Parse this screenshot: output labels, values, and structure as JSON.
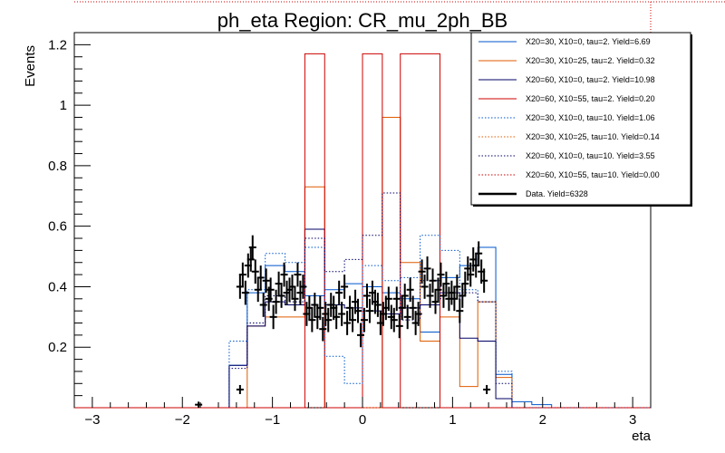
{
  "chart_data": {
    "type": "histogram",
    "title": "ph_eta Region: CR_mu_2ph_BB",
    "xlabel": "eta",
    "ylabel": "Events",
    "xlim": [
      -3.2,
      3.2
    ],
    "ylim": [
      0,
      1.24
    ],
    "x_ticks": [
      -3,
      -2,
      -1,
      0,
      1,
      2,
      3
    ],
    "y_ticks": [
      0.2,
      0.4,
      0.6,
      0.8,
      1,
      1.2
    ],
    "legend_position": "top-right",
    "grid": false,
    "bin_edges": [
      -3.2,
      -2.98,
      -2.76,
      -2.54,
      -2.32,
      -2.1,
      -1.88,
      -1.66,
      -1.48,
      -1.28,
      -1.08,
      -0.86,
      -0.64,
      -0.42,
      -0.2,
      0.0,
      0.22,
      0.42,
      0.64,
      0.86,
      1.08,
      1.28,
      1.48,
      1.66,
      1.88,
      2.1,
      2.32,
      2.54,
      2.76,
      2.98,
      3.2
    ],
    "series": [
      {
        "name": "X20=30, X10=0, tau=2. Yield=6.69",
        "color": "#0055cc",
        "style": "solid",
        "values": [
          0,
          0,
          0,
          0,
          0,
          0,
          0,
          0,
          0.14,
          0.38,
          0.47,
          0.45,
          0.37,
          0.39,
          0.41,
          0.4,
          0.38,
          0.36,
          0.25,
          0.43,
          0.47,
          0.53,
          0.11,
          0.02,
          0.01,
          0,
          0,
          0,
          0,
          0
        ]
      },
      {
        "name": "X20=30, X10=25, tau=2. Yield=0.32",
        "color": "#e05a00",
        "style": "solid",
        "values": [
          0,
          0,
          0,
          0,
          0,
          0,
          0,
          0,
          0,
          0.27,
          0.3,
          0.3,
          0.73,
          0,
          0,
          0,
          0.96,
          0.48,
          0.22,
          0.3,
          0.07,
          0.35,
          0.1,
          0,
          0,
          0,
          0,
          0,
          0,
          0
        ]
      },
      {
        "name": "X20=60, X10=0, tau=2. Yield=10.98",
        "color": "#000066",
        "style": "solid",
        "values": [
          0,
          0,
          0,
          0,
          0,
          0,
          0,
          0,
          0.14,
          0.27,
          0.35,
          0.34,
          0.59,
          0.34,
          0.33,
          0.32,
          0.31,
          0.33,
          0.34,
          0.38,
          0.23,
          0.22,
          0.03,
          0,
          0,
          0,
          0,
          0,
          0,
          0
        ]
      },
      {
        "name": "X20=60, X10=55, tau=2. Yield=0.20",
        "color": "#cc0000",
        "style": "solid",
        "values": [
          0,
          0,
          0,
          0,
          0,
          0,
          0,
          0,
          0,
          0,
          0,
          0,
          1.17,
          0,
          0,
          1.17,
          0,
          1.17,
          1.17,
          0,
          0,
          0,
          0,
          0,
          0,
          0,
          0,
          0,
          0,
          0
        ]
      },
      {
        "name": "X20=30, X10=0, tau=10. Yield=1.06",
        "color": "#0055cc",
        "style": "dotted",
        "values": [
          0,
          0,
          0,
          0,
          0,
          0,
          0,
          0,
          0.22,
          0.39,
          0.51,
          0.48,
          0.53,
          0.17,
          0.08,
          0.47,
          0.42,
          0.43,
          0.57,
          0.52,
          0.39,
          0.35,
          0.12,
          0,
          0,
          0,
          0,
          0,
          0,
          0
        ]
      },
      {
        "name": "X20=30, X10=25, tau=10. Yield=0.14",
        "color": "#e05a00",
        "style": "dotted",
        "values": [
          0,
          0,
          0,
          0,
          0,
          0,
          0,
          0,
          0,
          0,
          0,
          0,
          0,
          0,
          0,
          0,
          0,
          0,
          0,
          0,
          0,
          0,
          0,
          0,
          0,
          0,
          0,
          0,
          0,
          0
        ]
      },
      {
        "name": "X20=60, X10=0, tau=10. Yield=3.55",
        "color": "#000066",
        "style": "dotted",
        "values": [
          0,
          0,
          0,
          0,
          0,
          0,
          0,
          0,
          0.13,
          0.28,
          0.37,
          0.35,
          0.56,
          0.45,
          0.49,
          0.57,
          0.71,
          0.29,
          0.42,
          0.36,
          0.38,
          0.35,
          0.08,
          0,
          0,
          0,
          0,
          0,
          0,
          0
        ]
      },
      {
        "name": "X20=60, X10=55, tau=10. Yield=0.00",
        "color": "#cc0000",
        "style": "dotted",
        "values": [
          0,
          0,
          0,
          0,
          0,
          0,
          0,
          0,
          0,
          0,
          0,
          0,
          0,
          0,
          0,
          0,
          0,
          0,
          0,
          0,
          0,
          0,
          0,
          0,
          0,
          0,
          0,
          0,
          0,
          0
        ]
      },
      {
        "name": "Data. Yield=6328",
        "color": "#000000",
        "style": "markers",
        "points": [
          [
            -1.82,
            0.01,
            0.01
          ],
          [
            -1.36,
            0.06,
            0.015
          ],
          [
            -1.36,
            0.4,
            0.04
          ],
          [
            -1.33,
            0.44,
            0.04
          ],
          [
            -1.3,
            0.38,
            0.04
          ],
          [
            -1.27,
            0.47,
            0.04
          ],
          [
            -1.24,
            0.49,
            0.04
          ],
          [
            -1.22,
            0.53,
            0.04
          ],
          [
            -1.19,
            0.45,
            0.04
          ],
          [
            -1.16,
            0.39,
            0.04
          ],
          [
            -1.13,
            0.43,
            0.04
          ],
          [
            -1.1,
            0.34,
            0.04
          ],
          [
            -1.07,
            0.42,
            0.04
          ],
          [
            -1.04,
            0.36,
            0.04
          ],
          [
            -1.02,
            0.39,
            0.04
          ],
          [
            -0.99,
            0.3,
            0.04
          ],
          [
            -0.96,
            0.35,
            0.04
          ],
          [
            -0.93,
            0.41,
            0.04
          ],
          [
            -0.9,
            0.37,
            0.04
          ],
          [
            -0.87,
            0.44,
            0.04
          ],
          [
            -0.84,
            0.38,
            0.04
          ],
          [
            -0.81,
            0.39,
            0.04
          ],
          [
            -0.78,
            0.4,
            0.04
          ],
          [
            -0.75,
            0.36,
            0.04
          ],
          [
            -0.72,
            0.44,
            0.04
          ],
          [
            -0.69,
            0.38,
            0.04
          ],
          [
            -0.66,
            0.4,
            0.04
          ],
          [
            -0.62,
            0.31,
            0.04
          ],
          [
            -0.59,
            0.33,
            0.04
          ],
          [
            -0.56,
            0.29,
            0.04
          ],
          [
            -0.53,
            0.34,
            0.04
          ],
          [
            -0.5,
            0.3,
            0.04
          ],
          [
            -0.47,
            0.33,
            0.04
          ],
          [
            -0.44,
            0.26,
            0.04
          ],
          [
            -0.41,
            0.31,
            0.04
          ],
          [
            -0.38,
            0.29,
            0.04
          ],
          [
            -0.35,
            0.34,
            0.04
          ],
          [
            -0.32,
            0.33,
            0.04
          ],
          [
            -0.29,
            0.3,
            0.04
          ],
          [
            -0.26,
            0.38,
            0.04
          ],
          [
            -0.23,
            0.31,
            0.04
          ],
          [
            -0.2,
            0.4,
            0.04
          ],
          [
            -0.17,
            0.28,
            0.04
          ],
          [
            -0.14,
            0.33,
            0.04
          ],
          [
            -0.11,
            0.29,
            0.04
          ],
          [
            -0.08,
            0.35,
            0.04
          ],
          [
            -0.05,
            0.32,
            0.04
          ],
          [
            -0.02,
            0.24,
            0.04
          ],
          [
            0.02,
            0.29,
            0.04
          ],
          [
            0.05,
            0.37,
            0.04
          ],
          [
            0.08,
            0.32,
            0.04
          ],
          [
            0.11,
            0.38,
            0.04
          ],
          [
            0.14,
            0.35,
            0.04
          ],
          [
            0.17,
            0.34,
            0.04
          ],
          [
            0.2,
            0.28,
            0.04
          ],
          [
            0.23,
            0.31,
            0.04
          ],
          [
            0.26,
            0.33,
            0.04
          ],
          [
            0.29,
            0.36,
            0.04
          ],
          [
            0.32,
            0.3,
            0.04
          ],
          [
            0.35,
            0.29,
            0.04
          ],
          [
            0.38,
            0.36,
            0.04
          ],
          [
            0.41,
            0.27,
            0.04
          ],
          [
            0.44,
            0.33,
            0.04
          ],
          [
            0.47,
            0.37,
            0.04
          ],
          [
            0.5,
            0.3,
            0.04
          ],
          [
            0.53,
            0.39,
            0.04
          ],
          [
            0.56,
            0.33,
            0.04
          ],
          [
            0.59,
            0.28,
            0.04
          ],
          [
            0.62,
            0.31,
            0.04
          ],
          [
            0.66,
            0.45,
            0.04
          ],
          [
            0.69,
            0.4,
            0.04
          ],
          [
            0.72,
            0.46,
            0.04
          ],
          [
            0.75,
            0.37,
            0.04
          ],
          [
            0.78,
            0.42,
            0.04
          ],
          [
            0.81,
            0.35,
            0.04
          ],
          [
            0.84,
            0.39,
            0.04
          ],
          [
            0.87,
            0.44,
            0.04
          ],
          [
            0.9,
            0.37,
            0.04
          ],
          [
            0.93,
            0.41,
            0.04
          ],
          [
            0.96,
            0.36,
            0.04
          ],
          [
            0.99,
            0.38,
            0.04
          ],
          [
            1.02,
            0.36,
            0.04
          ],
          [
            1.05,
            0.4,
            0.04
          ],
          [
            1.08,
            0.32,
            0.04
          ],
          [
            1.11,
            0.37,
            0.04
          ],
          [
            1.14,
            0.41,
            0.04
          ],
          [
            1.17,
            0.46,
            0.04
          ],
          [
            1.2,
            0.44,
            0.04
          ],
          [
            1.23,
            0.49,
            0.04
          ],
          [
            1.26,
            0.47,
            0.04
          ],
          [
            1.29,
            0.51,
            0.04
          ],
          [
            1.32,
            0.45,
            0.04
          ],
          [
            1.35,
            0.42,
            0.04
          ],
          [
            1.38,
            0.06,
            0.015
          ]
        ]
      }
    ]
  }
}
